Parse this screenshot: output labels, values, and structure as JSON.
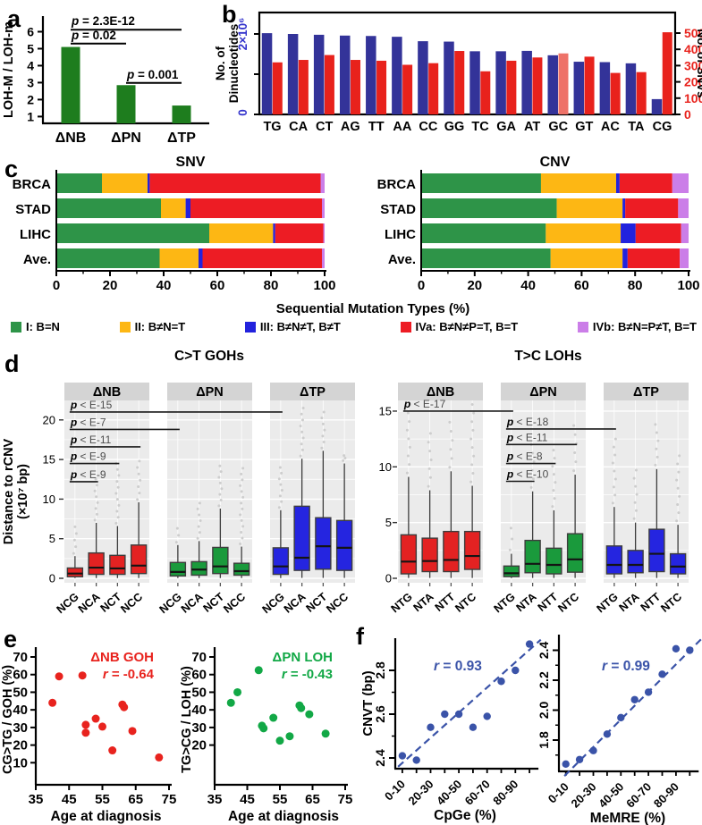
{
  "panels": {
    "a": {
      "letter": "a"
    },
    "b": {
      "letter": "b"
    },
    "c": {
      "letter": "c",
      "xlabel": "Sequential Mutation Types (%)",
      "legend": [
        {
          "label": "I: B=N",
          "color": "#2e9448"
        },
        {
          "label": "II: B≠N=T",
          "color": "#fdb714"
        },
        {
          "label": "III: B≠N≠T, B≠T",
          "color": "#2222dd"
        },
        {
          "label": "IVa: B≠N≠P=T, B=T",
          "color": "#ed1c24"
        },
        {
          "label": "IVb: B≠N=P≠T, B=T",
          "color": "#cb7ee8"
        }
      ]
    },
    "d": {
      "letter": "d"
    },
    "e": {
      "letter": "e"
    },
    "f": {
      "letter": "f"
    }
  },
  "chart_data": [
    {
      "id": "a",
      "type": "bar",
      "categories": [
        "ΔNB",
        "ΔPN",
        "ΔTP"
      ],
      "values": [
        5.1,
        2.85,
        1.65
      ],
      "ylabel": "LOH-M / LOH-m",
      "yticks": [
        1,
        2,
        3,
        4,
        5,
        6
      ],
      "ylim": [
        0.6,
        6.92
      ],
      "bar_color": "#1e7d1e",
      "pvalues": [
        {
          "label": "p = 2.3E-12",
          "from": 0,
          "to": 2,
          "y": 6.12
        },
        {
          "label": "p = 0.02",
          "from": 0,
          "to": 1,
          "y": 5.3
        },
        {
          "label": "p = 0.001",
          "from": 1,
          "to": 2,
          "y": 2.98
        }
      ]
    },
    {
      "id": "b",
      "type": "bar",
      "categories": [
        "TG",
        "CA",
        "CT",
        "AG",
        "TT",
        "AA",
        "CC",
        "GG",
        "TC",
        "GA",
        "AT",
        "GC",
        "GT",
        "AC",
        "TA",
        "CG"
      ],
      "series": [
        {
          "name": "Dinucleotides",
          "axis": "left",
          "color": "#333399",
          "values_e6": [
            2.02,
            2.0,
            1.98,
            1.96,
            1.95,
            1.93,
            1.82,
            1.81,
            1.57,
            1.57,
            1.58,
            1.47,
            1.31,
            1.3,
            1.27,
            0.38
          ]
        },
        {
          "name": "SNVs",
          "axis": "right",
          "color": "#e8221c",
          "values": [
            320,
            335,
            365,
            335,
            330,
            305,
            315,
            390,
            265,
            330,
            350,
            375,
            355,
            255,
            260,
            505
          ],
          "highlight_index": 11,
          "highlight_color": "#ee7268"
        }
      ],
      "left_axis": {
        "label_lines": [
          "No. of",
          "Dinucleotides"
        ],
        "tick_top": "2×10⁶",
        "tick_zero": "0",
        "color": "#3333cc"
      },
      "right_axis": {
        "label": "No. of SNVs",
        "ticks": [
          0,
          100,
          200,
          300,
          400,
          500
        ],
        "color": "#e8221c"
      }
    },
    {
      "id": "c_snv",
      "type": "bar",
      "subtype": "stacked-horizontal",
      "title": "SNV",
      "categories": [
        "BRCA",
        "STAD",
        "LIHC",
        "Ave."
      ],
      "segment_colors": [
        "#2e9448",
        "#fdb714",
        "#2222dd",
        "#ed1c24",
        "#cb7ee8"
      ],
      "rows": [
        [
          17.0,
          17.0,
          0.8,
          63.7,
          1.5
        ],
        [
          39.0,
          9.2,
          1.8,
          49.0,
          1.0
        ],
        [
          57.0,
          23.8,
          0.8,
          17.9,
          0.5
        ],
        [
          38.5,
          14.5,
          1.5,
          44.5,
          1.0
        ]
      ],
      "xticks": [
        0,
        20,
        40,
        60,
        80,
        100
      ]
    },
    {
      "id": "c_cnv",
      "type": "bar",
      "subtype": "stacked-horizontal",
      "title": "CNV",
      "categories": [
        "BRCA",
        "STAD",
        "LIHC",
        "Ave."
      ],
      "segment_colors": [
        "#2e9448",
        "#fdb714",
        "#2222dd",
        "#ed1c24",
        "#cb7ee8"
      ],
      "rows": [
        [
          44.8,
          28.1,
          1.3,
          19.7,
          6.1
        ],
        [
          50.7,
          24.6,
          1.0,
          19.8,
          3.9
        ],
        [
          46.6,
          28.0,
          5.6,
          17.0,
          2.8
        ],
        [
          48.4,
          26.9,
          1.9,
          19.5,
          3.3
        ]
      ],
      "xticks": [
        0,
        20,
        40,
        60,
        80,
        100
      ]
    },
    {
      "id": "d_left",
      "type": "boxplot",
      "title": "C>T GOHs",
      "ylabel_lines": [
        "Distance to rCNV",
        "(×10⁷ bp)"
      ],
      "yticks": [
        0,
        5,
        10,
        15,
        20
      ],
      "facets": [
        {
          "name": "ΔNB",
          "color": "#e32222",
          "boxes": [
            {
              "label": "NCG",
              "lo": 0.03,
              "q1": 0.2,
              "med": 0.6,
              "q3": 1.3,
              "hi": 2.8,
              "out": 6.5
            },
            {
              "label": "NCA",
              "lo": 0.03,
              "q1": 0.5,
              "med": 1.35,
              "q3": 3.2,
              "hi": 7.0,
              "out": 12.5
            },
            {
              "label": "NCT",
              "lo": 0.03,
              "q1": 0.5,
              "med": 1.25,
              "q3": 2.9,
              "hi": 6.6,
              "out": 14.5
            },
            {
              "label": "NCC",
              "lo": 0.03,
              "q1": 0.6,
              "med": 1.6,
              "q3": 4.2,
              "hi": 9.6,
              "out": 14.8
            }
          ]
        },
        {
          "name": "ΔPN",
          "color": "#1a9a3c",
          "boxes": [
            {
              "label": "NCG",
              "lo": 0.03,
              "q1": 0.3,
              "med": 0.8,
              "q3": 2.0,
              "hi": 4.2,
              "out": 6.3
            },
            {
              "label": "NCA",
              "lo": 0.03,
              "q1": 0.4,
              "med": 1.1,
              "q3": 2.1,
              "hi": 4.7,
              "out": 9.5
            },
            {
              "label": "NCT",
              "lo": 0.03,
              "q1": 0.6,
              "med": 1.5,
              "q3": 3.9,
              "hi": 8.8,
              "out": 14.2
            },
            {
              "label": "NCC",
              "lo": 0.03,
              "q1": 0.4,
              "med": 0.9,
              "q3": 1.9,
              "hi": 4.0,
              "out": 13.9
            }
          ]
        },
        {
          "name": "ΔTP",
          "color": "#2525e0",
          "boxes": [
            {
              "label": "NCG",
              "lo": 0.03,
              "q1": 0.5,
              "med": 1.5,
              "q3": 3.85,
              "hi": 8.6,
              "out": 14.0
            },
            {
              "label": "NCA",
              "lo": 0.05,
              "q1": 1.0,
              "med": 2.6,
              "q3": 9.1,
              "hi": 15.1,
              "out": 21.5
            },
            {
              "label": "NCT",
              "lo": 0.05,
              "q1": 1.15,
              "med": 4.05,
              "q3": 7.65,
              "hi": 16.1,
              "out": 21.0
            },
            {
              "label": "NCC",
              "lo": 0.05,
              "q1": 1.0,
              "med": 3.85,
              "q3": 7.3,
              "hi": 14.5,
              "out": 15.5
            }
          ]
        }
      ],
      "pvalues": [
        {
          "label": "p < E-15",
          "f1": 0,
          "c1": 0,
          "f2": 2,
          "c2": 0,
          "y": 21.0
        },
        {
          "label": "p < E-7",
          "f1": 0,
          "c1": 0,
          "f2": 1,
          "c2": 0,
          "y": 18.8
        },
        {
          "label": "p < E-11",
          "f1": 0,
          "c1": 0,
          "f2": 0,
          "c2": 3,
          "y": 16.6
        },
        {
          "label": "p < E-9",
          "f1": 0,
          "c1": 0,
          "f2": 0,
          "c2": 2,
          "y": 14.5
        },
        {
          "label": "p < E-9",
          "f1": 0,
          "c1": 0,
          "f2": 0,
          "c2": 1,
          "y": 12.2
        }
      ]
    },
    {
      "id": "d_right",
      "type": "boxplot",
      "title": "T>C LOHs",
      "yticks": [
        0,
        5,
        10,
        15
      ],
      "facets": [
        {
          "name": "ΔNB",
          "color": "#e32222",
          "boxes": [
            {
              "label": "NTG",
              "lo": 0.03,
              "q1": 0.4,
              "med": 1.5,
              "q3": 3.9,
              "hi": 9.1,
              "out": 15.6
            },
            {
              "label": "NTA",
              "lo": 0.03,
              "q1": 0.6,
              "med": 1.55,
              "q3": 3.6,
              "hi": 7.9,
              "out": 13.0
            },
            {
              "label": "NTT",
              "lo": 0.03,
              "q1": 0.6,
              "med": 1.65,
              "q3": 4.2,
              "hi": 9.6,
              "out": 14.0
            },
            {
              "label": "NTC",
              "lo": 0.03,
              "q1": 0.8,
              "med": 2.0,
              "q3": 4.2,
              "hi": 8.3,
              "out": 15.6
            }
          ]
        },
        {
          "name": "ΔPN",
          "color": "#1a9a3c",
          "boxes": [
            {
              "label": "NTG",
              "lo": 0.02,
              "q1": 0.15,
              "med": 0.45,
              "q3": 1.1,
              "hi": 2.2,
              "out": 4.5
            },
            {
              "label": "NTA",
              "lo": 0.03,
              "q1": 0.5,
              "med": 1.3,
              "q3": 3.4,
              "hi": 7.8,
              "out": 12.0
            },
            {
              "label": "NTT",
              "lo": 0.03,
              "q1": 0.4,
              "med": 1.2,
              "q3": 2.7,
              "hi": 6.1,
              "out": 11.5
            },
            {
              "label": "NTC",
              "lo": 0.03,
              "q1": 0.55,
              "med": 1.7,
              "q3": 4.0,
              "hi": 9.3,
              "out": 13.7
            }
          ]
        },
        {
          "name": "ΔTP",
          "color": "#2525e0",
          "boxes": [
            {
              "label": "NTG",
              "lo": 0.03,
              "q1": 0.4,
              "med": 1.2,
              "q3": 2.9,
              "hi": 6.4,
              "out": 12.5
            },
            {
              "label": "NTA",
              "lo": 0.03,
              "q1": 0.5,
              "med": 1.2,
              "q3": 2.5,
              "hi": 5.0,
              "out": 9.7
            },
            {
              "label": "NTT",
              "lo": 0.03,
              "q1": 0.6,
              "med": 2.2,
              "q3": 4.4,
              "hi": 9.8,
              "out": 13.8
            },
            {
              "label": "NTC",
              "lo": 0.03,
              "q1": 0.4,
              "med": 1.05,
              "q3": 2.2,
              "hi": 4.8,
              "out": 11.0
            }
          ]
        }
      ],
      "pvalues": [
        {
          "label": "p < E-17",
          "f1": 0,
          "c1": 0,
          "f2": 1,
          "c2": 0,
          "y": 15.0
        },
        {
          "label": "p < E-18",
          "f1": 1,
          "c1": 0,
          "f2": 2,
          "c2": 0,
          "y": 13.4
        },
        {
          "label": "p < E-11",
          "f1": 1,
          "c1": 0,
          "f2": 1,
          "c2": 3,
          "y": 12.0
        },
        {
          "label": "p < E-8",
          "f1": 1,
          "c1": 0,
          "f2": 1,
          "c2": 2,
          "y": 10.3
        },
        {
          "label": "p < E-10",
          "f1": 1,
          "c1": 0,
          "f2": 1,
          "c2": 1,
          "y": 8.7
        }
      ]
    },
    {
      "id": "e_left",
      "type": "scatter",
      "title": "ΔNB GOH",
      "r_label": "r = -0.64",
      "color": "#e8231e",
      "xlabel": "Age at diagnosis",
      "ylabel": "CG>TG / GOH (%)",
      "xticks": [
        35,
        45,
        55,
        65,
        75
      ],
      "yticks": [
        10,
        20,
        30,
        40,
        50,
        60,
        70
      ],
      "points": [
        [
          40,
          44
        ],
        [
          42,
          59
        ],
        [
          49,
          59.5
        ],
        [
          50,
          31.5
        ],
        [
          50,
          27
        ],
        [
          53,
          35
        ],
        [
          55,
          30.5
        ],
        [
          58,
          17
        ],
        [
          61,
          43
        ],
        [
          61.5,
          41.5
        ],
        [
          64,
          28
        ],
        [
          72,
          13
        ]
      ]
    },
    {
      "id": "e_right",
      "type": "scatter",
      "title": "ΔPN LOH",
      "r_label": "r = -0.43",
      "color": "#12a846",
      "xlabel": "Age at diagnosis",
      "ylabel": "TG>CG / LOH (%)",
      "xticks": [
        35,
        45,
        55,
        65,
        75
      ],
      "yticks": [
        20,
        30,
        40,
        50,
        60,
        70
      ],
      "points": [
        [
          40,
          44
        ],
        [
          42,
          50
        ],
        [
          48.5,
          62.5
        ],
        [
          49.5,
          31
        ],
        [
          50,
          29.5
        ],
        [
          53,
          35.5
        ],
        [
          55,
          22.5
        ],
        [
          58,
          25
        ],
        [
          61,
          42.5
        ],
        [
          61.5,
          41
        ],
        [
          64,
          37.5
        ],
        [
          69,
          26.5
        ]
      ]
    },
    {
      "id": "f_left",
      "type": "scatter",
      "r_label": "r = 0.93",
      "color": "#3a53a8",
      "xlabel": "CpGe (%)",
      "ylabel": "CNVT (bp)",
      "xtick_labels": [
        "0-10",
        "20-30",
        "40-50",
        "60-70",
        "80-90"
      ],
      "yticks": [
        2.4,
        2.6,
        2.8
      ],
      "yminor": [
        2.5,
        2.7
      ],
      "values": [
        2.41,
        2.39,
        2.54,
        2.6,
        2.6,
        2.54,
        2.59,
        2.75,
        2.8,
        2.92
      ],
      "trend": [
        [
          -0.3,
          2.36
        ],
        [
          9.8,
          2.94
        ]
      ]
    },
    {
      "id": "f_right",
      "type": "scatter",
      "r_label": "r = 0.99",
      "color": "#3a53a8",
      "xlabel": "MeMRE (%)",
      "xtick_labels": [
        "0-10",
        "20-30",
        "40-50",
        "60-70",
        "80-90"
      ],
      "yticks": [
        1.8,
        2.0,
        2.2,
        2.4
      ],
      "yminor": [
        1.7,
        1.9,
        2.1,
        2.3
      ],
      "values": [
        1.64,
        1.67,
        1.73,
        1.84,
        1.95,
        2.07,
        2.12,
        2.24,
        2.41,
        2.4
      ],
      "trend": [
        [
          -0.1,
          1.56
        ],
        [
          10.0,
          2.49
        ]
      ]
    }
  ]
}
